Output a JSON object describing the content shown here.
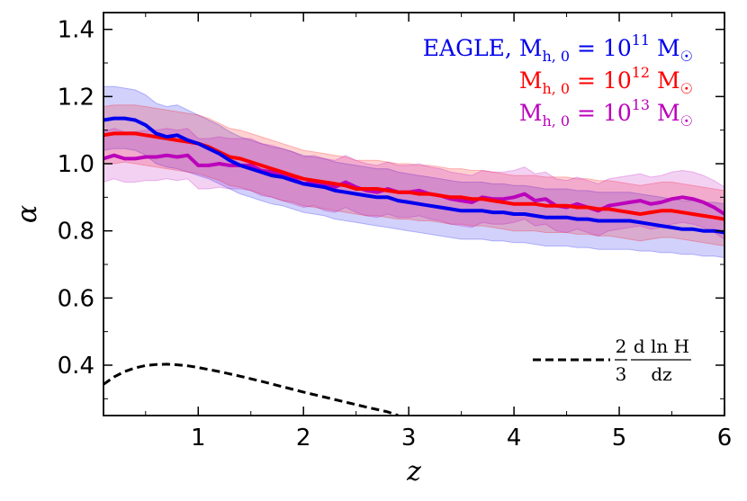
{
  "chart_data": {
    "type": "line",
    "title": "",
    "xlabel": "z",
    "ylabel": "α",
    "xlim": [
      0.1,
      6.0
    ],
    "ylim": [
      0.25,
      1.45
    ],
    "xticks": [
      1,
      2,
      3,
      4,
      5,
      6
    ],
    "xtick_labels": [
      "1",
      "2",
      "3",
      "4",
      "5",
      "6"
    ],
    "yticks": [
      0.4,
      0.6,
      0.8,
      1.0,
      1.2,
      1.4
    ],
    "ytick_labels": [
      "0.4",
      "0.6",
      "0.8",
      "1.0",
      "1.2",
      "1.4"
    ],
    "grid": false,
    "legend_position": "top-right",
    "legend": {
      "prefix": "EAGLE, ",
      "lhs": "M",
      "sub": "h, 0",
      "eq": " = 10",
      "unit": " M",
      "sun": "☉"
    },
    "x": [
      0.1,
      0.2,
      0.3,
      0.4,
      0.5,
      0.6,
      0.7,
      0.8,
      0.9,
      1.0,
      1.1,
      1.2,
      1.3,
      1.4,
      1.5,
      1.6,
      1.7,
      1.8,
      1.9,
      2.0,
      2.1,
      2.2,
      2.3,
      2.4,
      2.5,
      2.6,
      2.7,
      2.8,
      2.9,
      3.0,
      3.1,
      3.2,
      3.3,
      3.4,
      3.5,
      3.6,
      3.7,
      3.8,
      3.9,
      4.0,
      4.1,
      4.2,
      4.3,
      4.4,
      4.5,
      4.6,
      4.7,
      4.8,
      4.9,
      5.0,
      5.1,
      5.2,
      5.3,
      5.4,
      5.5,
      5.6,
      5.7,
      5.8,
      5.9,
      6.0
    ],
    "series": [
      {
        "name": "EAGLE, M_h,0 = 10^11 M_sun",
        "exp": "11",
        "color": "#0000ee",
        "y": [
          1.13,
          1.135,
          1.135,
          1.13,
          1.115,
          1.09,
          1.08,
          1.085,
          1.07,
          1.06,
          1.045,
          1.03,
          1.01,
          0.995,
          0.985,
          0.975,
          0.965,
          0.96,
          0.95,
          0.94,
          0.935,
          0.93,
          0.92,
          0.915,
          0.91,
          0.905,
          0.9,
          0.9,
          0.89,
          0.885,
          0.88,
          0.875,
          0.87,
          0.865,
          0.86,
          0.86,
          0.86,
          0.855,
          0.855,
          0.85,
          0.85,
          0.845,
          0.84,
          0.84,
          0.84,
          0.835,
          0.835,
          0.83,
          0.83,
          0.83,
          0.83,
          0.825,
          0.82,
          0.815,
          0.81,
          0.805,
          0.805,
          0.8,
          0.8,
          0.795
        ],
        "lower": [
          1.04,
          1.045,
          1.045,
          1.04,
          1.025,
          1.0,
          0.99,
          0.985,
          0.975,
          0.965,
          0.955,
          0.94,
          0.925,
          0.91,
          0.9,
          0.89,
          0.88,
          0.875,
          0.865,
          0.855,
          0.85,
          0.845,
          0.835,
          0.83,
          0.825,
          0.82,
          0.815,
          0.81,
          0.805,
          0.8,
          0.795,
          0.79,
          0.785,
          0.78,
          0.775,
          0.775,
          0.775,
          0.77,
          0.77,
          0.765,
          0.765,
          0.76,
          0.755,
          0.755,
          0.755,
          0.75,
          0.75,
          0.745,
          0.745,
          0.745,
          0.745,
          0.74,
          0.74,
          0.735,
          0.735,
          0.73,
          0.73,
          0.725,
          0.725,
          0.72
        ],
        "upper": [
          1.23,
          1.23,
          1.225,
          1.22,
          1.205,
          1.18,
          1.17,
          1.175,
          1.16,
          1.145,
          1.13,
          1.115,
          1.095,
          1.08,
          1.07,
          1.06,
          1.05,
          1.045,
          1.035,
          1.025,
          1.02,
          1.015,
          1.005,
          1.0,
          0.995,
          0.99,
          0.985,
          0.985,
          0.975,
          0.97,
          0.965,
          0.96,
          0.955,
          0.95,
          0.945,
          0.945,
          0.945,
          0.94,
          0.94,
          0.935,
          0.935,
          0.93,
          0.925,
          0.925,
          0.925,
          0.92,
          0.92,
          0.915,
          0.915,
          0.915,
          0.915,
          0.91,
          0.905,
          0.9,
          0.895,
          0.89,
          0.89,
          0.885,
          0.885,
          0.88
        ]
      },
      {
        "name": "M_h,0 = 10^12 M_sun",
        "exp": "12",
        "color": "#ff0000",
        "y": [
          1.085,
          1.09,
          1.09,
          1.09,
          1.085,
          1.08,
          1.075,
          1.07,
          1.065,
          1.06,
          1.05,
          1.035,
          1.02,
          1.015,
          1.005,
          0.995,
          0.985,
          0.975,
          0.965,
          0.955,
          0.95,
          0.945,
          0.94,
          0.935,
          0.925,
          0.925,
          0.925,
          0.92,
          0.915,
          0.915,
          0.91,
          0.91,
          0.905,
          0.9,
          0.9,
          0.895,
          0.895,
          0.89,
          0.885,
          0.88,
          0.88,
          0.88,
          0.875,
          0.875,
          0.875,
          0.87,
          0.87,
          0.865,
          0.865,
          0.86,
          0.855,
          0.85,
          0.855,
          0.86,
          0.86,
          0.855,
          0.85,
          0.845,
          0.84,
          0.835
        ],
        "lower": [
          1.0,
          1.0,
          1.005,
          1.0,
          0.995,
          0.99,
          0.985,
          0.98,
          0.975,
          0.97,
          0.96,
          0.95,
          0.935,
          0.93,
          0.92,
          0.91,
          0.9,
          0.89,
          0.885,
          0.875,
          0.87,
          0.865,
          0.86,
          0.855,
          0.85,
          0.845,
          0.845,
          0.84,
          0.835,
          0.835,
          0.83,
          0.83,
          0.825,
          0.82,
          0.82,
          0.815,
          0.815,
          0.81,
          0.805,
          0.8,
          0.8,
          0.8,
          0.795,
          0.795,
          0.795,
          0.79,
          0.79,
          0.785,
          0.785,
          0.78,
          0.775,
          0.77,
          0.775,
          0.78,
          0.78,
          0.775,
          0.77,
          0.765,
          0.76,
          0.755
        ],
        "upper": [
          1.17,
          1.175,
          1.175,
          1.175,
          1.17,
          1.165,
          1.16,
          1.155,
          1.15,
          1.145,
          1.135,
          1.12,
          1.105,
          1.1,
          1.09,
          1.08,
          1.07,
          1.06,
          1.05,
          1.04,
          1.035,
          1.03,
          1.025,
          1.02,
          1.01,
          1.01,
          1.01,
          1.005,
          1.0,
          1.0,
          0.995,
          0.995,
          0.99,
          0.985,
          0.985,
          0.98,
          0.98,
          0.975,
          0.97,
          0.965,
          0.965,
          0.965,
          0.96,
          0.96,
          0.96,
          0.955,
          0.955,
          0.95,
          0.95,
          0.945,
          0.94,
          0.935,
          0.94,
          0.945,
          0.945,
          0.94,
          0.935,
          0.93,
          0.925,
          0.92
        ]
      },
      {
        "name": "M_h,0 = 10^13 M_sun",
        "exp": "13",
        "color": "#bb00bb",
        "y": [
          1.015,
          1.025,
          1.015,
          1.015,
          1.02,
          1.02,
          1.025,
          1.02,
          1.025,
          0.995,
          0.995,
          1.0,
          0.995,
          0.995,
          0.995,
          0.98,
          0.975,
          0.965,
          0.955,
          0.94,
          0.945,
          0.935,
          0.93,
          0.945,
          0.93,
          0.92,
          0.915,
          0.925,
          0.915,
          0.915,
          0.92,
          0.91,
          0.905,
          0.895,
          0.89,
          0.885,
          0.9,
          0.895,
          0.895,
          0.9,
          0.91,
          0.89,
          0.895,
          0.875,
          0.87,
          0.88,
          0.87,
          0.86,
          0.875,
          0.88,
          0.885,
          0.89,
          0.88,
          0.885,
          0.895,
          0.9,
          0.895,
          0.885,
          0.87,
          0.85
        ],
        "lower": [
          0.945,
          0.955,
          0.945,
          0.945,
          0.95,
          0.95,
          0.955,
          0.95,
          0.955,
          0.925,
          0.925,
          0.93,
          0.925,
          0.925,
          0.92,
          0.905,
          0.9,
          0.89,
          0.88,
          0.87,
          0.875,
          0.86,
          0.855,
          0.87,
          0.855,
          0.845,
          0.84,
          0.85,
          0.84,
          0.84,
          0.845,
          0.835,
          0.83,
          0.82,
          0.815,
          0.81,
          0.825,
          0.82,
          0.82,
          0.825,
          0.835,
          0.815,
          0.82,
          0.8,
          0.795,
          0.805,
          0.795,
          0.785,
          0.8,
          0.805,
          0.81,
          0.815,
          0.805,
          0.81,
          0.82,
          0.825,
          0.82,
          0.81,
          0.795,
          0.775
        ],
        "upper": [
          1.095,
          1.105,
          1.095,
          1.095,
          1.1,
          1.1,
          1.105,
          1.1,
          1.105,
          1.075,
          1.075,
          1.08,
          1.075,
          1.075,
          1.075,
          1.06,
          1.055,
          1.045,
          1.035,
          1.02,
          1.025,
          1.015,
          1.01,
          1.025,
          1.01,
          1.0,
          0.995,
          1.005,
          0.995,
          0.995,
          1.0,
          0.99,
          0.985,
          0.975,
          0.97,
          0.965,
          0.98,
          0.975,
          0.975,
          0.98,
          0.99,
          0.97,
          0.975,
          0.955,
          0.95,
          0.96,
          0.95,
          0.94,
          0.955,
          0.96,
          0.965,
          0.97,
          0.96,
          0.965,
          0.975,
          0.98,
          0.975,
          0.965,
          0.95,
          0.93
        ]
      }
    ],
    "reference": {
      "name": "(2/3) d ln H / dz",
      "frac_num": "2",
      "frac_den": "3",
      "deriv_num": "d ln H",
      "deriv_den": "dz",
      "style": "dashed",
      "color": "#000000",
      "x": [
        0.1,
        0.2,
        0.3,
        0.4,
        0.5,
        0.6,
        0.7,
        0.8,
        0.9,
        1.0,
        1.2,
        1.4,
        1.6,
        1.8,
        2.0,
        2.2,
        2.4,
        2.6,
        2.8,
        2.9
      ],
      "y": [
        0.343,
        0.365,
        0.381,
        0.392,
        0.399,
        0.402,
        0.403,
        0.401,
        0.398,
        0.393,
        0.381,
        0.367,
        0.352,
        0.336,
        0.32,
        0.305,
        0.29,
        0.275,
        0.261,
        0.25
      ]
    }
  }
}
